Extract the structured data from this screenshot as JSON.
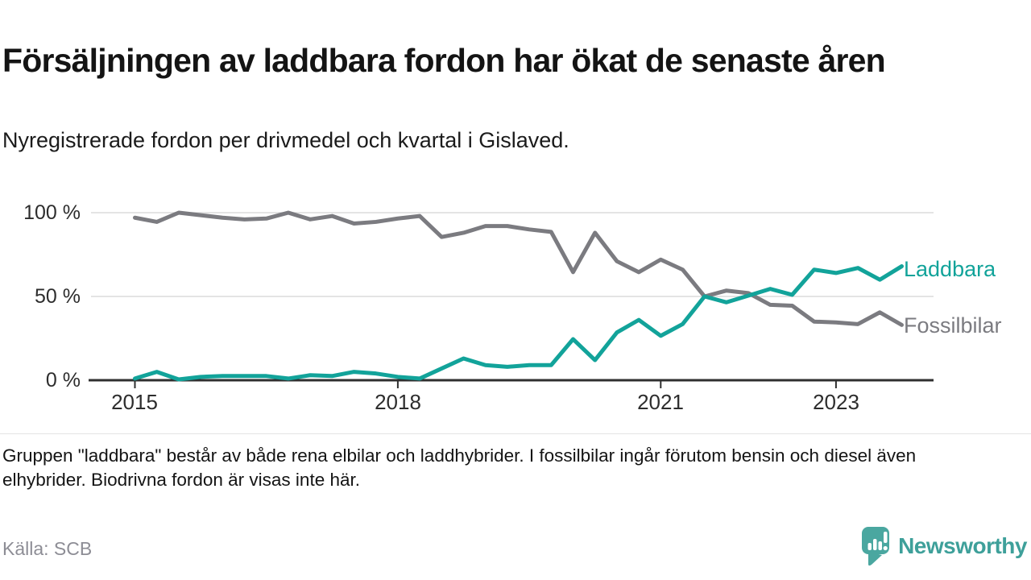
{
  "header": {
    "title": "Försäljningen av laddbara fordon har ökat de senaste åren",
    "subtitle": "Nyregistrerade fordon per drivmedel och kvartal i Gislaved."
  },
  "chart_data": {
    "type": "line",
    "title": "Nyregistrerade fordon per drivmedel och kvartal i Gislaved",
    "x_unit": "quarter",
    "categories": [
      "2015 Q1",
      "2015 Q2",
      "2015 Q3",
      "2015 Q4",
      "2016 Q1",
      "2016 Q2",
      "2016 Q3",
      "2016 Q4",
      "2017 Q1",
      "2017 Q2",
      "2017 Q3",
      "2017 Q4",
      "2018 Q1",
      "2018 Q2",
      "2018 Q3",
      "2018 Q4",
      "2019 Q1",
      "2019 Q2",
      "2019 Q3",
      "2019 Q4",
      "2020 Q1",
      "2020 Q2",
      "2020 Q3",
      "2020 Q4",
      "2021 Q1",
      "2021 Q2",
      "2021 Q3",
      "2021 Q4",
      "2022 Q1",
      "2022 Q2",
      "2022 Q3",
      "2022 Q4",
      "2023 Q1",
      "2023 Q2",
      "2023 Q3",
      "2023 Q4"
    ],
    "series": [
      {
        "name": "Laddbara",
        "color": "#12a39a",
        "values": [
          1,
          5,
          0.5,
          2,
          2.5,
          2.5,
          2.5,
          1,
          3,
          2.5,
          5,
          4,
          2,
          1,
          7,
          13,
          9,
          8,
          9,
          9,
          24.5,
          12,
          28.5,
          36,
          26.5,
          33.5,
          50,
          46.5,
          50.5,
          54.5,
          51,
          66,
          64,
          67,
          60,
          68
        ]
      },
      {
        "name": "Fossilbilar",
        "color": "#7b7b80",
        "values": [
          97,
          94.5,
          100,
          98.5,
          97,
          96,
          96.5,
          100,
          96,
          98,
          93.5,
          94.5,
          96.5,
          98,
          85.5,
          88,
          92,
          92,
          90,
          88.5,
          64.5,
          88,
          71,
          64.5,
          72,
          66,
          50,
          53.5,
          52,
          45,
          44.5,
          35,
          34.5,
          33.5,
          40.5,
          33
        ]
      }
    ],
    "ylim": [
      0,
      100
    ],
    "y_ticks": [
      "0 %",
      "50 %",
      "100 %"
    ],
    "x_ticks": [
      {
        "label": "2015",
        "index": 0
      },
      {
        "label": "2018",
        "index": 12
      },
      {
        "label": "2021",
        "index": 24
      },
      {
        "label": "2023",
        "index": 32
      }
    ],
    "grid": "horizontal",
    "legend_position": "right-of-line-end"
  },
  "footer": {
    "note": "Gruppen \"laddbara\" består av både rena elbilar och laddhybrider. I fossilbilar ingår förutom bensin och diesel även elhybrider. Biodrivna fordon är visas inte här.",
    "source": "Källa: SCB"
  },
  "branding": {
    "logo_text": "Newsworthy",
    "color": "#3ea09a",
    "icon_color": "#4aa7a0"
  }
}
